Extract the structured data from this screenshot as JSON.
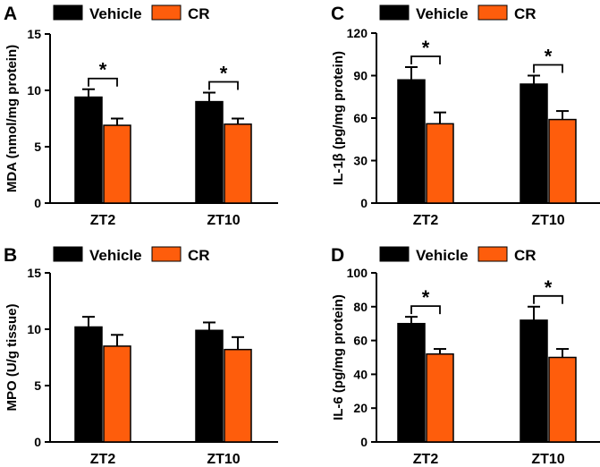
{
  "colors": {
    "vehicle": "#000000",
    "cr": "#fe5d0c",
    "axis": "#000000"
  },
  "chart_data": [
    {
      "panel": "A",
      "type": "bar",
      "categories": [
        "ZT2",
        "ZT10"
      ],
      "series": [
        {
          "name": "Vehicle",
          "values": [
            9.4,
            9.0
          ],
          "errors": [
            0.7,
            0.8
          ]
        },
        {
          "name": "CR",
          "values": [
            6.9,
            7.0
          ],
          "errors": [
            0.6,
            0.5
          ]
        }
      ],
      "ylabel": "MDA (nmol/mg protein)",
      "ylim": [
        0,
        15
      ],
      "yticks": [
        0,
        5,
        10,
        15
      ],
      "significance": [
        "*",
        "*"
      ],
      "legend": "top"
    },
    {
      "panel": "B",
      "type": "bar",
      "categories": [
        "ZT2",
        "ZT10"
      ],
      "series": [
        {
          "name": "Vehicle",
          "values": [
            10.2,
            9.9
          ],
          "errors": [
            0.9,
            0.7
          ]
        },
        {
          "name": "CR",
          "values": [
            8.5,
            8.2
          ],
          "errors": [
            1.0,
            1.1
          ]
        }
      ],
      "ylabel": "MPO (U/g tissue)",
      "ylim": [
        0,
        15
      ],
      "yticks": [
        0,
        5,
        10,
        15
      ],
      "significance": [],
      "legend": "top"
    },
    {
      "panel": "C",
      "type": "bar",
      "categories": [
        "ZT2",
        "ZT10"
      ],
      "series": [
        {
          "name": "Vehicle",
          "values": [
            87,
            84
          ],
          "errors": [
            9,
            6
          ]
        },
        {
          "name": "CR",
          "values": [
            56,
            59
          ],
          "errors": [
            8,
            6
          ]
        }
      ],
      "ylabel": "IL-1β (pg/mg protein)",
      "ylim": [
        0,
        120
      ],
      "yticks": [
        0,
        30,
        60,
        90,
        120
      ],
      "significance": [
        "*",
        "*"
      ],
      "legend": "top"
    },
    {
      "panel": "D",
      "type": "bar",
      "categories": [
        "ZT2",
        "ZT10"
      ],
      "series": [
        {
          "name": "Vehicle",
          "values": [
            70,
            72
          ],
          "errors": [
            4,
            8
          ]
        },
        {
          "name": "CR",
          "values": [
            52,
            50
          ],
          "errors": [
            3,
            5
          ]
        }
      ],
      "ylabel": "IL-6 (pg/mg protein)",
      "ylim": [
        0,
        100
      ],
      "yticks": [
        0,
        20,
        40,
        60,
        80,
        100
      ],
      "significance": [
        "*",
        "*"
      ],
      "legend": "top"
    }
  ]
}
